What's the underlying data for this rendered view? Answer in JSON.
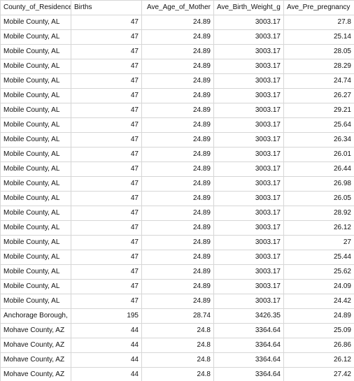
{
  "spreadsheet": {
    "columns": [
      "County_of_Residence",
      "Births",
      "Ave_Age_of_Mother",
      "Ave_Birth_Weight_g",
      "Ave_Pre_pregnancy"
    ],
    "rows": [
      [
        "Mobile County, AL",
        "47",
        "24.89",
        "3003.17",
        "27.8"
      ],
      [
        "Mobile County, AL",
        "47",
        "24.89",
        "3003.17",
        "25.14"
      ],
      [
        "Mobile County, AL",
        "47",
        "24.89",
        "3003.17",
        "28.05"
      ],
      [
        "Mobile County, AL",
        "47",
        "24.89",
        "3003.17",
        "28.29"
      ],
      [
        "Mobile County, AL",
        "47",
        "24.89",
        "3003.17",
        "24.74"
      ],
      [
        "Mobile County, AL",
        "47",
        "24.89",
        "3003.17",
        "26.27"
      ],
      [
        "Mobile County, AL",
        "47",
        "24.89",
        "3003.17",
        "29.21"
      ],
      [
        "Mobile County, AL",
        "47",
        "24.89",
        "3003.17",
        "25.64"
      ],
      [
        "Mobile County, AL",
        "47",
        "24.89",
        "3003.17",
        "26.34"
      ],
      [
        "Mobile County, AL",
        "47",
        "24.89",
        "3003.17",
        "26.01"
      ],
      [
        "Mobile County, AL",
        "47",
        "24.89",
        "3003.17",
        "26.44"
      ],
      [
        "Mobile County, AL",
        "47",
        "24.89",
        "3003.17",
        "26.98"
      ],
      [
        "Mobile County, AL",
        "47",
        "24.89",
        "3003.17",
        "26.05"
      ],
      [
        "Mobile County, AL",
        "47",
        "24.89",
        "3003.17",
        "28.92"
      ],
      [
        "Mobile County, AL",
        "47",
        "24.89",
        "3003.17",
        "26.12"
      ],
      [
        "Mobile County, AL",
        "47",
        "24.89",
        "3003.17",
        "27"
      ],
      [
        "Mobile County, AL",
        "47",
        "24.89",
        "3003.17",
        "25.44"
      ],
      [
        "Mobile County, AL",
        "47",
        "24.89",
        "3003.17",
        "25.62"
      ],
      [
        "Mobile County, AL",
        "47",
        "24.89",
        "3003.17",
        "24.09"
      ],
      [
        "Mobile County, AL",
        "47",
        "24.89",
        "3003.17",
        "24.42"
      ],
      [
        "Anchorage Borough,",
        "195",
        "28.74",
        "3426.35",
        "24.89"
      ],
      [
        "Mohave County, AZ",
        "44",
        "24.8",
        "3364.64",
        "25.09"
      ],
      [
        "Mohave County, AZ",
        "44",
        "24.8",
        "3364.64",
        "26.86"
      ],
      [
        "Mohave County, AZ",
        "44",
        "24.8",
        "3364.64",
        "26.12"
      ],
      [
        "Mohave County, AZ",
        "44",
        "24.8",
        "3364.64",
        "27.42"
      ]
    ]
  }
}
